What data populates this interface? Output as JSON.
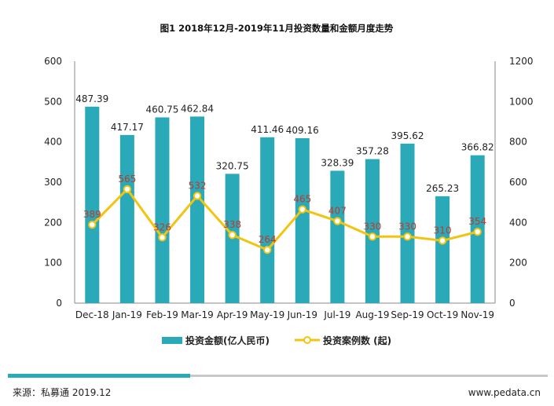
{
  "chart_data": {
    "type": "bar",
    "title": "图1 2018年12月-2019年11月投资数量和金额月度走势",
    "categories": [
      "Dec-18",
      "Jan-19",
      "Feb-19",
      "Mar-19",
      "Apr-19",
      "May-19",
      "Jun-19",
      "Jul-19",
      "Aug-19",
      "Sep-19",
      "Oct-19",
      "Nov-19"
    ],
    "series": [
      {
        "name": "投资金额(亿人民币)",
        "type": "bar",
        "axis": "left",
        "values": [
          487.39,
          417.17,
          460.75,
          462.84,
          320.75,
          411.46,
          409.16,
          328.39,
          357.28,
          395.62,
          265.23,
          366.82
        ],
        "labels": [
          "487.39",
          "417.17",
          "460.75",
          "462.84",
          "320.75",
          "411.46",
          "409.16",
          "328.39",
          "357.28",
          "395.62",
          "265.23",
          "366.82"
        ]
      },
      {
        "name": "投资案例数 (起)",
        "type": "line",
        "axis": "right",
        "values": [
          389,
          565,
          326,
          532,
          338,
          264,
          465,
          407,
          330,
          330,
          310,
          354
        ],
        "labels": [
          "389",
          "565",
          "326",
          "532",
          "338",
          "264",
          "465",
          "407",
          "330",
          "330",
          "310",
          "354"
        ]
      }
    ],
    "ylim_left": [
      0,
      600
    ],
    "yticks_left": [
      "0",
      "100",
      "200",
      "300",
      "400",
      "500",
      "600"
    ],
    "ylim_right": [
      0,
      1200
    ],
    "yticks_right": [
      "0",
      "200",
      "400",
      "600",
      "800",
      "1000",
      "1200"
    ],
    "grid": false,
    "legend_position": "bottom",
    "colors": {
      "bar": "#2aa9b8",
      "line": "#f2c40f",
      "marker_fill": "#ffffff",
      "line_label": "#c0392b",
      "footer_bar_teal": "#2aa9b8",
      "footer_bar_gray": "#c8c8c8"
    }
  },
  "footer": {
    "source": "来源：私募通 2019.12",
    "website": "www.pedata.cn"
  }
}
